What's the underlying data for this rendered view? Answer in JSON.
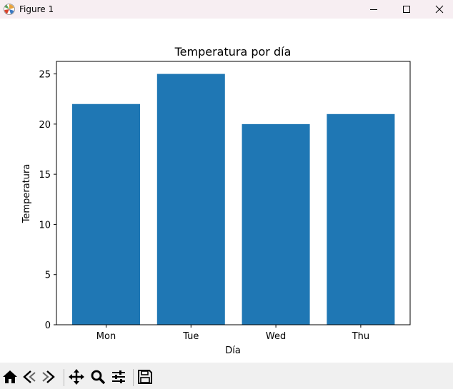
{
  "window": {
    "title": "Figure 1",
    "controls": {
      "minimize_icon": "minimize-icon",
      "maximize_icon": "maximize-icon",
      "close_icon": "close-icon"
    }
  },
  "toolbar": {
    "items": [
      "home-icon",
      "back-arrow-icon",
      "forward-arrow-icon",
      "pan-icon",
      "zoom-icon",
      "configure-subplots-icon",
      "save-icon"
    ]
  },
  "chart_data": {
    "type": "bar",
    "title": "Temperatura por día",
    "xlabel": "Día",
    "ylabel": "Temperatura",
    "categories": [
      "Mon",
      "Tue",
      "Wed",
      "Thu"
    ],
    "values": [
      22,
      25,
      20,
      21
    ],
    "ylim": [
      0,
      26.25
    ],
    "yticks": [
      0,
      5,
      10,
      15,
      20,
      25
    ],
    "grid": false,
    "bar_color": "#1f77b4"
  }
}
